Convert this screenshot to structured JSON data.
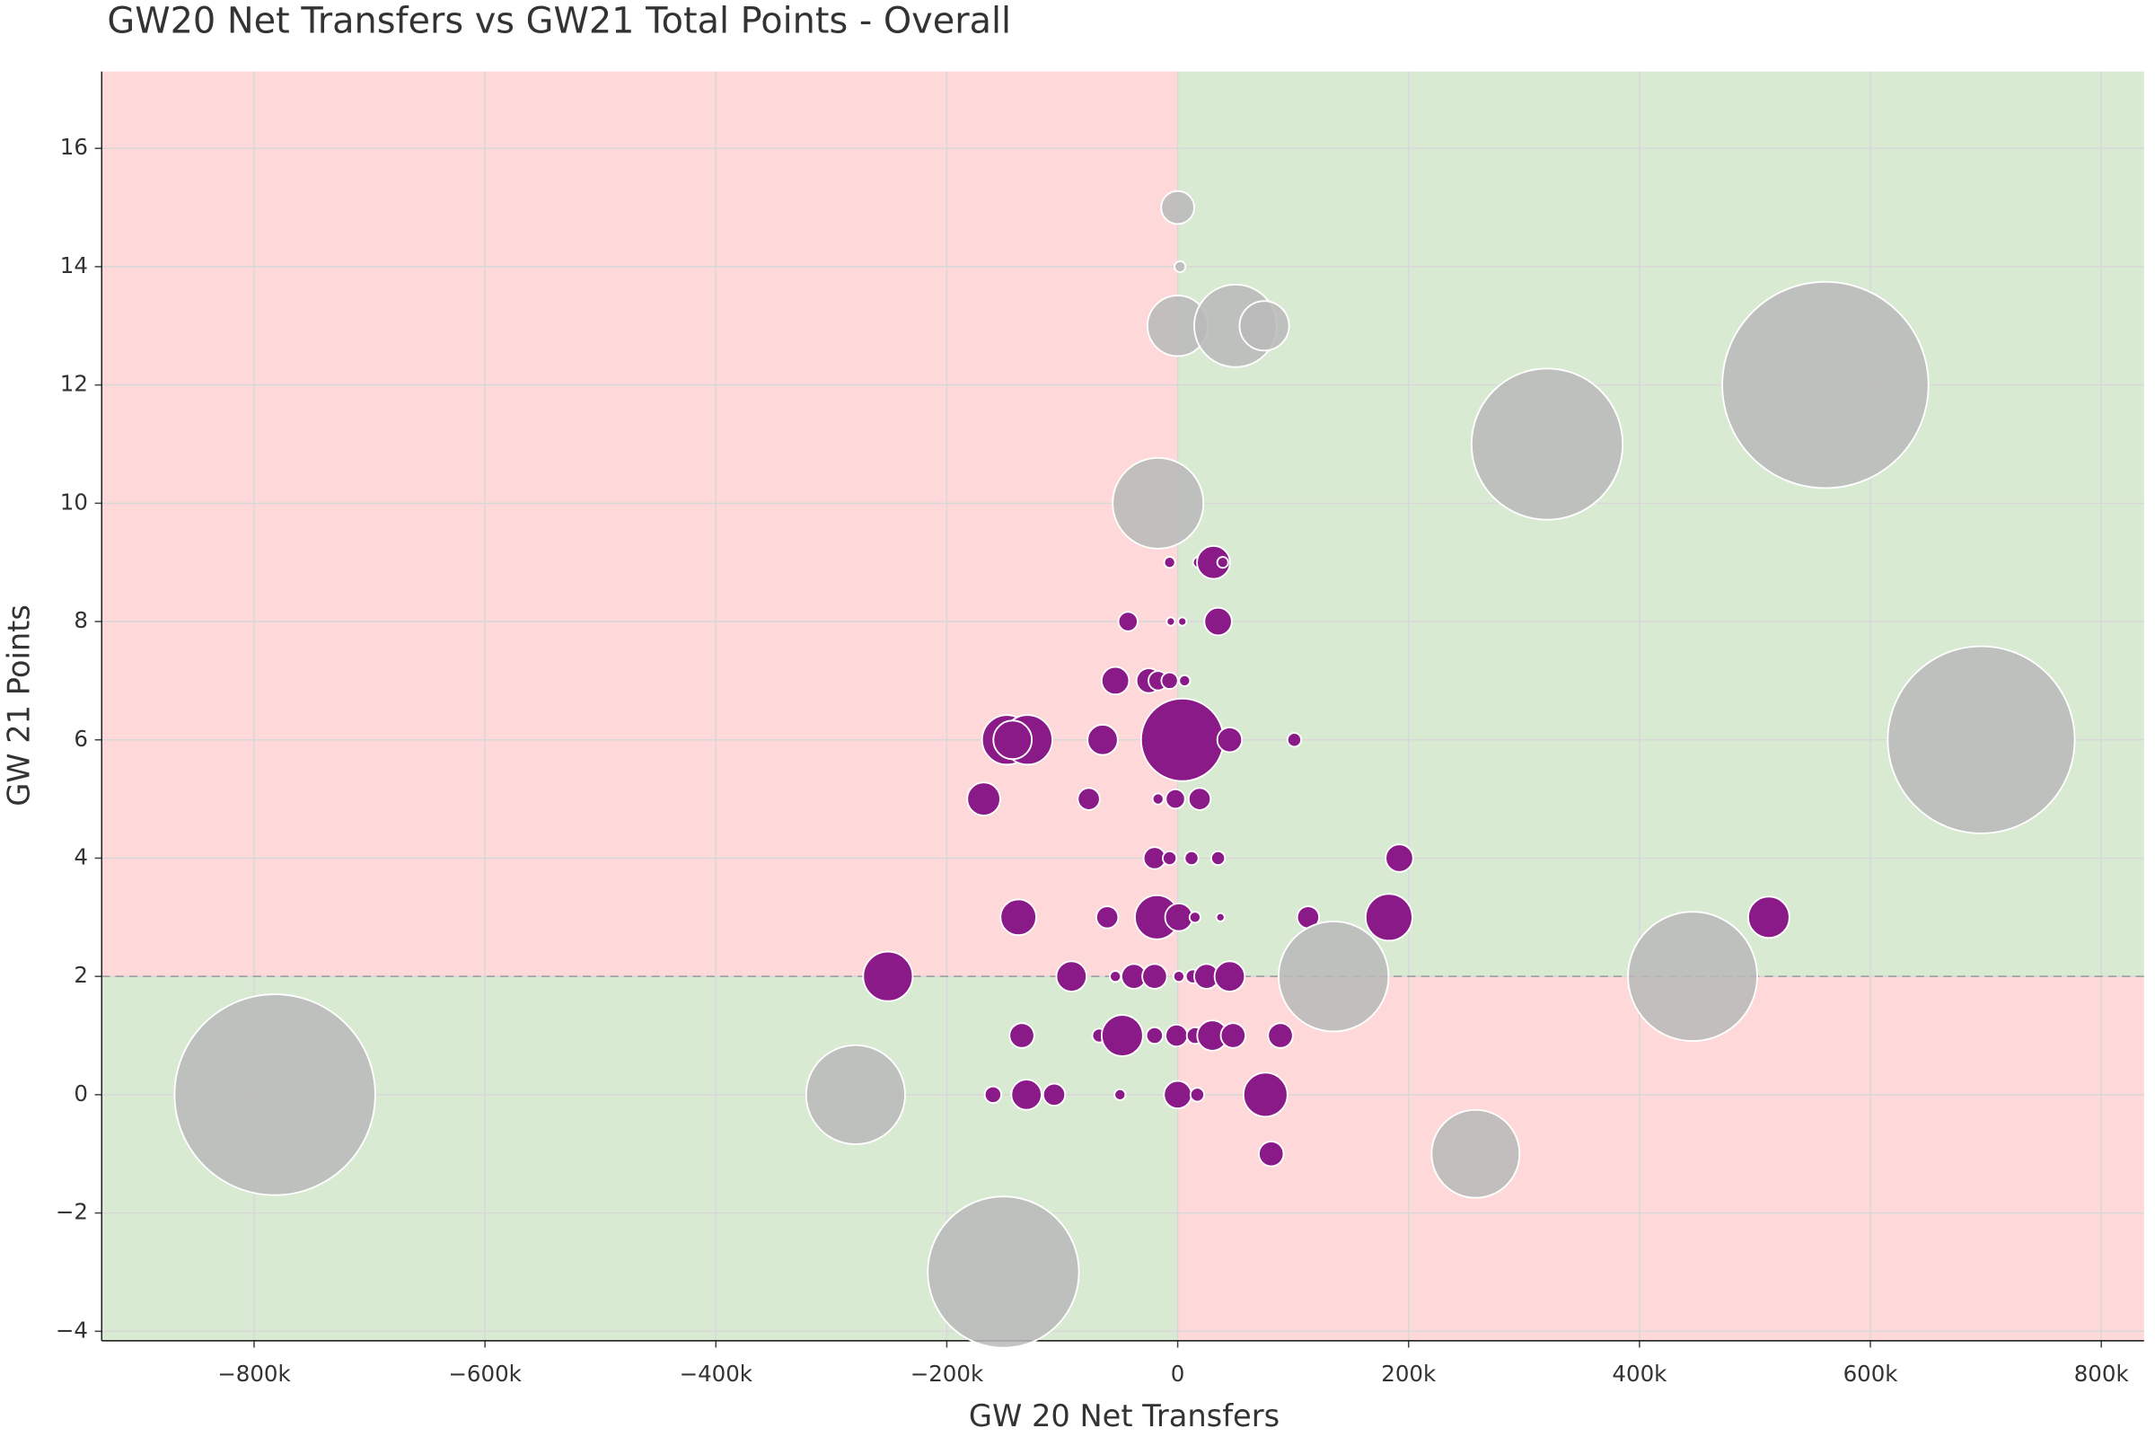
{
  "chart_data": {
    "type": "scatter",
    "title": "GW20 Net Transfers vs GW21 Total Points - Overall",
    "x_label": "GW 20 Net Transfers",
    "y_label": "GW 21 Points",
    "xlim": [
      -932000,
      837000
    ],
    "ylim": [
      -4.16,
      17.3
    ],
    "xticks": [
      {
        "value": -800000,
        "label": "−800k"
      },
      {
        "value": -600000,
        "label": "−600k"
      },
      {
        "value": -400000,
        "label": "−400k"
      },
      {
        "value": -200000,
        "label": "−200k"
      },
      0,
      {
        "value": 200000,
        "label": "200k"
      },
      {
        "value": 400000,
        "label": "400k"
      },
      {
        "value": 600000,
        "label": "600k"
      },
      {
        "value": 800000,
        "label": "800k"
      }
    ],
    "yticks": [
      {
        "value": -4,
        "label": "−4"
      },
      {
        "value": -2,
        "label": "−2"
      },
      0,
      2,
      4,
      6,
      8,
      10,
      12,
      14,
      16
    ],
    "grid": true,
    "split_x": 0,
    "split_y": 2,
    "good_color": "#d9ead3",
    "bad_color": "#ffd9d9",
    "series": [
      {
        "color": "#8b1a89",
        "x": [
          -7000,
          18000,
          31000,
          39000,
          -43000,
          -6000,
          4000,
          35000,
          -54000,
          -25000,
          -17000,
          -7000,
          6000,
          -148000,
          -130000,
          -143000,
          -65000,
          4000,
          45000,
          101000,
          -168000,
          -77000,
          -17000,
          -2000,
          19000,
          -20000,
          -7000,
          12000,
          35000,
          192000,
          -138000,
          -61000,
          -18000,
          1000,
          15000,
          37000,
          113000,
          183000,
          512000,
          -251000,
          -92000,
          -54000,
          -38000,
          -20000,
          1000,
          13000,
          25000,
          45000,
          -135000,
          -68000,
          -48000,
          -20000,
          -1000,
          15000,
          30000,
          48000,
          89000,
          -160000,
          -131000,
          -107000,
          -50000,
          0,
          17000,
          76000,
          81000
        ],
        "values": [
          9,
          9,
          9,
          9,
          8,
          8,
          8,
          8,
          7,
          7,
          7,
          7,
          7,
          6,
          6,
          6,
          6,
          6,
          6,
          6,
          5,
          5,
          5,
          5,
          5,
          4,
          4,
          4,
          4,
          4,
          3,
          3,
          3,
          3,
          3,
          3,
          3,
          3,
          3,
          2,
          2,
          2,
          2,
          2,
          2,
          2,
          2,
          2,
          1,
          1,
          1,
          1,
          1,
          1,
          1,
          1,
          1,
          0,
          0,
          0,
          0,
          0,
          0,
          0,
          -1
        ],
        "sizes": [
          4,
          4,
          12,
          4,
          7,
          3,
          3,
          10,
          10,
          9,
          7,
          6,
          4,
          18,
          18,
          14,
          11,
          30,
          9,
          5,
          12,
          8,
          4,
          7,
          8,
          8,
          5,
          5,
          5,
          10,
          13,
          8,
          16,
          10,
          4,
          3,
          8,
          17,
          15,
          18,
          11,
          4,
          9,
          9,
          4,
          5,
          9,
          11,
          9,
          5,
          15,
          6,
          8,
          6,
          11,
          9,
          9,
          6,
          11,
          8,
          4,
          10,
          5,
          16,
          9
        ]
      },
      {
        "color": "#b8b8b8",
        "x": [
          0,
          2000,
          0,
          50000,
          75000,
          -17000,
          320000,
          561000,
          696000,
          446000,
          135000,
          258000,
          -782000,
          -279000,
          -151000
        ],
        "values": [
          15,
          14,
          13,
          13,
          13,
          10,
          11,
          12,
          6,
          2,
          2,
          -1,
          0,
          0,
          -3
        ],
        "sizes": [
          12,
          4,
          22,
          30,
          18,
          33,
          55,
          75,
          68,
          47,
          40,
          32,
          73,
          36,
          55
        ]
      }
    ]
  }
}
